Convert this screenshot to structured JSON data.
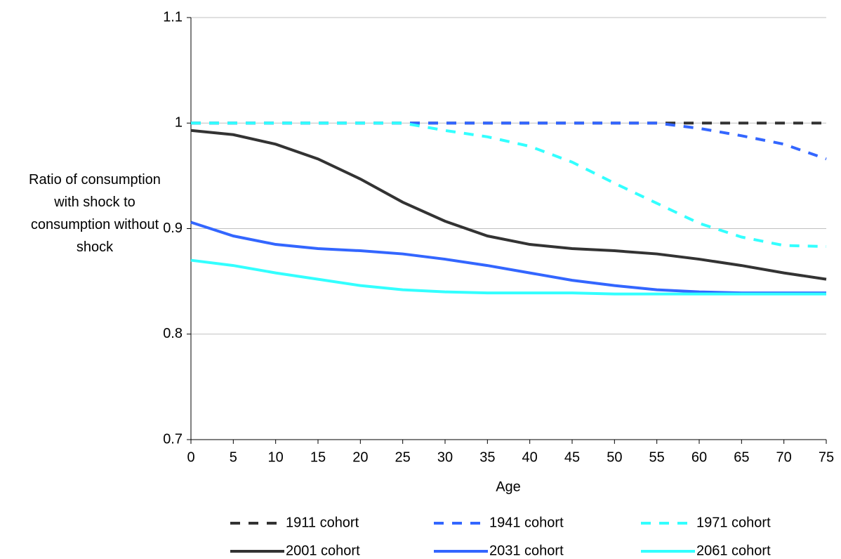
{
  "chart_data": {
    "type": "line",
    "y_label": "Ratio of consumption with shock to consumption without shock",
    "x_label": "Age",
    "x": [
      0,
      5,
      10,
      15,
      20,
      25,
      30,
      35,
      40,
      45,
      50,
      55,
      60,
      65,
      70,
      75
    ],
    "xlim": [
      0,
      75
    ],
    "xticks": [
      0,
      5,
      10,
      15,
      20,
      25,
      30,
      35,
      40,
      45,
      50,
      55,
      60,
      65,
      70,
      75
    ],
    "ylim": [
      0.7,
      1.1
    ],
    "yticks": [
      0.7,
      0.8,
      0.9,
      1,
      1.1
    ],
    "grid": true,
    "legend": "bottom",
    "series": [
      {
        "name": "1911 cohort",
        "color": "#333333",
        "style": "dashed",
        "values": [
          1,
          1,
          1,
          1,
          1,
          1,
          1,
          1,
          1,
          1,
          1,
          1,
          1,
          1,
          1,
          1
        ]
      },
      {
        "name": "1941 cohort",
        "color": "#3366ff",
        "style": "dashed",
        "values": [
          1,
          1,
          1,
          1,
          1,
          1,
          1,
          1,
          1,
          1,
          1,
          1,
          0.995,
          0.988,
          0.98,
          0.966
        ]
      },
      {
        "name": "1971 cohort",
        "color": "#33ffff",
        "style": "dashed",
        "values": [
          1,
          1,
          1,
          1,
          1,
          1,
          0.993,
          0.987,
          0.978,
          0.963,
          0.943,
          0.924,
          0.905,
          0.892,
          0.884,
          0.883
        ]
      },
      {
        "name": "2001 cohort",
        "color": "#333333",
        "style": "solid",
        "values": [
          0.993,
          0.989,
          0.98,
          0.966,
          0.947,
          0.925,
          0.907,
          0.893,
          0.885,
          0.881,
          0.879,
          0.876,
          0.871,
          0.865,
          0.858,
          0.852
        ]
      },
      {
        "name": "2031 cohort",
        "color": "#3366ff",
        "style": "solid",
        "values": [
          0.906,
          0.893,
          0.885,
          0.881,
          0.879,
          0.876,
          0.871,
          0.865,
          0.858,
          0.851,
          0.846,
          0.842,
          0.84,
          0.839,
          0.839,
          0.839
        ]
      },
      {
        "name": "2061 cohort",
        "color": "#33ffff",
        "style": "solid",
        "values": [
          0.87,
          0.865,
          0.858,
          0.852,
          0.846,
          0.842,
          0.84,
          0.839,
          0.839,
          0.839,
          0.838,
          0.838,
          0.838,
          0.838,
          0.838,
          0.838
        ]
      }
    ]
  }
}
